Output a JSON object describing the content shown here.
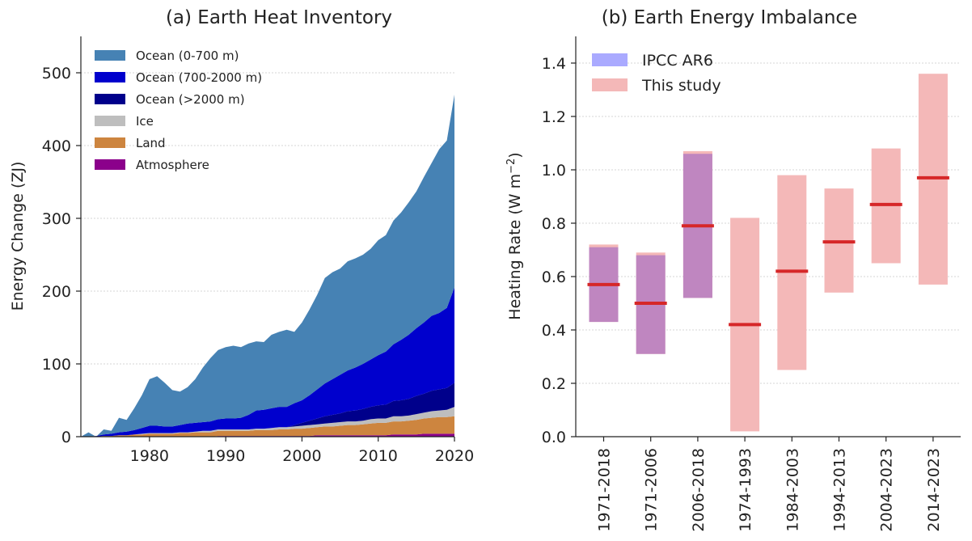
{
  "chart_data": [
    {
      "type": "area",
      "title": "(a) Earth Heat Inventory",
      "ylabel": "Energy Change (ZJ)",
      "xlabel": "",
      "xlim": [
        1971,
        2020
      ],
      "ylim": [
        0,
        550
      ],
      "xticks": [
        "1980",
        "1990",
        "2000",
        "2010",
        "2020"
      ],
      "yticks": [
        "0",
        "100",
        "200",
        "300",
        "400",
        "500"
      ],
      "grid": "horizontal dotted",
      "legend_position": "upper-left",
      "stacking_order": [
        "Atmosphere",
        "Land",
        "Ice",
        "Ocean (>2000 m)",
        "Ocean (700-2000 m)",
        "Ocean (0-700 m)"
      ],
      "x": [
        1971,
        1972,
        1973,
        1974,
        1975,
        1976,
        1977,
        1978,
        1979,
        1980,
        1981,
        1982,
        1983,
        1984,
        1985,
        1986,
        1987,
        1988,
        1989,
        1990,
        1991,
        1992,
        1993,
        1994,
        1995,
        1996,
        1997,
        1998,
        1999,
        2000,
        2001,
        2002,
        2003,
        2004,
        2005,
        2006,
        2007,
        2008,
        2009,
        2010,
        2011,
        2012,
        2013,
        2014,
        2015,
        2016,
        2017,
        2018,
        2019,
        2020
      ],
      "series": [
        {
          "name": "Ocean (0-700 m)",
          "color": "#4682b4",
          "values": [
            0,
            6,
            -1,
            7,
            4,
            20,
            16,
            30,
            45,
            64,
            68,
            60,
            50,
            46,
            50,
            60,
            75,
            87,
            95,
            98,
            100,
            97,
            98,
            95,
            93,
            101,
            103,
            106,
            98,
            107,
            118,
            130,
            145,
            147,
            146,
            150,
            150,
            150,
            152,
            158,
            160,
            170,
            175,
            182,
            188,
            200,
            210,
            225,
            230,
            265
          ]
        },
        {
          "name": "Ocean (700-2000 m)",
          "color": "#0000cd",
          "values": [
            0,
            0,
            1,
            2,
            3,
            4,
            5,
            6,
            8,
            10,
            10,
            9,
            9,
            10,
            12,
            12,
            12,
            13,
            14,
            15,
            15,
            16,
            20,
            25,
            26,
            27,
            28,
            28,
            30,
            31,
            35,
            40,
            45,
            49,
            53,
            56,
            59,
            62,
            65,
            69,
            73,
            78,
            83,
            88,
            93,
            98,
            103,
            105,
            110,
            131
          ]
        },
        {
          "name": "Ocean (>2000 m)",
          "color": "#00008b",
          "values": [
            0,
            0,
            0,
            0,
            0,
            0,
            0,
            0,
            0,
            0,
            0,
            0,
            0,
            0,
            0,
            0,
            0,
            0,
            0,
            0,
            0,
            0,
            0,
            0,
            0,
            0,
            0,
            0,
            2,
            4,
            6,
            8,
            10,
            11,
            12,
            14,
            15,
            16,
            17,
            18,
            19,
            21,
            22,
            23,
            25,
            26,
            28,
            29,
            30,
            33
          ]
        },
        {
          "name": "Ice",
          "color": "#bebebe",
          "values": [
            0,
            0,
            0,
            0,
            0,
            0,
            0,
            0,
            1,
            1,
            1,
            1,
            1,
            1,
            1,
            1,
            2,
            2,
            2,
            2,
            2,
            2,
            2,
            2,
            2,
            3,
            3,
            3,
            3,
            4,
            4,
            4,
            4,
            5,
            5,
            5,
            5,
            5,
            6,
            6,
            6,
            7,
            7,
            7,
            8,
            8,
            9,
            9,
            10,
            13
          ]
        },
        {
          "name": "Land",
          "color": "#cd853f",
          "values": [
            0,
            0,
            0,
            1,
            1,
            2,
            2,
            3,
            3,
            4,
            4,
            4,
            4,
            5,
            5,
            6,
            6,
            6,
            7,
            7,
            7,
            7,
            7,
            8,
            8,
            8,
            9,
            9,
            10,
            10,
            11,
            11,
            12,
            12,
            13,
            14,
            14,
            15,
            16,
            17,
            17,
            18,
            18,
            19,
            20,
            21,
            22,
            23,
            23,
            24
          ]
        },
        {
          "name": "Atmosphere",
          "color": "#8b008b",
          "values": [
            0,
            0,
            0,
            0,
            0,
            0,
            0,
            0,
            0,
            0,
            0,
            0,
            0,
            0,
            0,
            0,
            0,
            0,
            1,
            1,
            1,
            1,
            1,
            1,
            1,
            1,
            1,
            1,
            1,
            1,
            1,
            2,
            2,
            2,
            2,
            2,
            2,
            2,
            2,
            2,
            2,
            3,
            3,
            3,
            3,
            4,
            4,
            4,
            4,
            4
          ]
        }
      ]
    },
    {
      "type": "bar",
      "title": "(b) Earth Energy Imbalance",
      "ylabel_main": "Heating Rate (W m",
      "ylabel_sup": "−2",
      "ylabel_tail": ")",
      "ylim": [
        0,
        1.5
      ],
      "yticks": [
        "0.0",
        "0.2",
        "0.4",
        "0.6",
        "0.8",
        "1.0",
        "1.2",
        "1.4"
      ],
      "grid": "horizontal dotted",
      "legend_position": "upper-left",
      "categories": [
        "1971-2018",
        "1971-2006",
        "2006-2018",
        "1974-1993",
        "1984-2003",
        "1994-2013",
        "2004-2023",
        "2014-2023"
      ],
      "series": [
        {
          "name": "IPCC AR6",
          "color": "#aaaaff",
          "bars": [
            {
              "category": "1971-2018",
              "low": 0.43,
              "high": 0.71
            },
            {
              "category": "1971-2006",
              "low": 0.31,
              "high": 0.68
            },
            {
              "category": "2006-2018",
              "low": 0.52,
              "high": 1.06
            }
          ]
        },
        {
          "name": "This study",
          "color": "#f4b8b8",
          "bars": [
            {
              "category": "1971-2018",
              "low": 0.43,
              "high": 0.72,
              "central": 0.57
            },
            {
              "category": "1971-2006",
              "low": 0.31,
              "high": 0.69,
              "central": 0.5
            },
            {
              "category": "2006-2018",
              "low": 0.52,
              "high": 1.07,
              "central": 0.79
            },
            {
              "category": "1974-1993",
              "low": 0.02,
              "high": 0.82,
              "central": 0.42
            },
            {
              "category": "1984-2003",
              "low": 0.25,
              "high": 0.98,
              "central": 0.62
            },
            {
              "category": "1994-2013",
              "low": 0.54,
              "high": 0.93,
              "central": 0.73
            },
            {
              "category": "2004-2023",
              "low": 0.65,
              "high": 1.08,
              "central": 0.87
            },
            {
              "category": "2014-2023",
              "low": 0.57,
              "high": 1.36,
              "central": 0.97
            }
          ]
        }
      ],
      "overlap_color": "#bf86c0",
      "central_line_color": "#d62728"
    }
  ]
}
